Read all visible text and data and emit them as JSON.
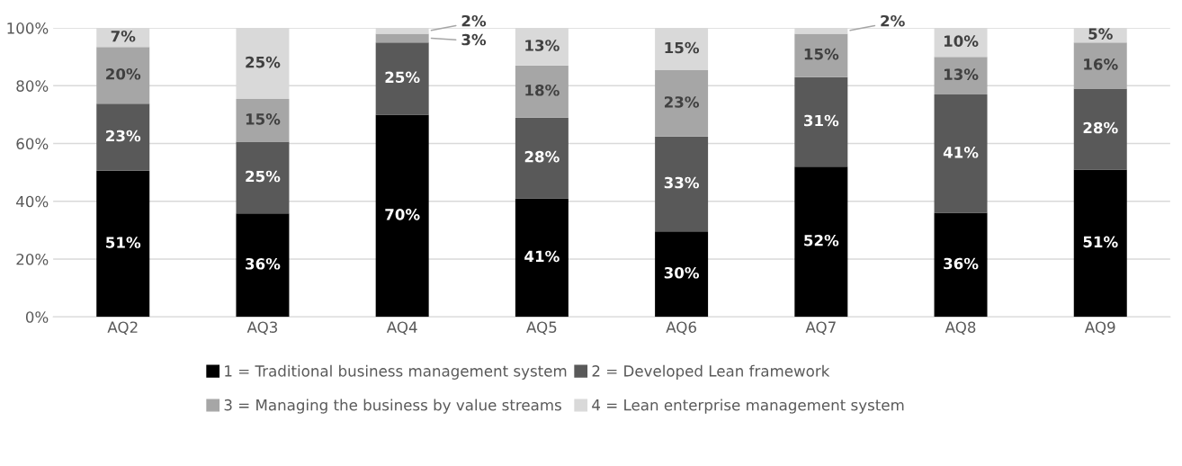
{
  "chart_data": {
    "type": "bar",
    "stacked": true,
    "categories": [
      "AQ2",
      "AQ3",
      "AQ4",
      "AQ5",
      "AQ6",
      "AQ7",
      "AQ8",
      "AQ9"
    ],
    "series": [
      {
        "name": "1 = Traditional business management system",
        "color": "#000000",
        "values": [
          50.6,
          35.8,
          70,
          41,
          29.6,
          52,
          36,
          51
        ],
        "value_labels": [
          "51%",
          "36%",
          "70%",
          "41%",
          "30%",
          "52%",
          "36%",
          "51%"
        ]
      },
      {
        "name": "2 = Developed Lean framework",
        "color": "#595959",
        "values": [
          23.2,
          24.8,
          25,
          28,
          32.8,
          31,
          41,
          28
        ],
        "value_labels": [
          "23%",
          "25%",
          "25%",
          "28%",
          "33%",
          "31%",
          "41%",
          "28%"
        ]
      },
      {
        "name": "3 = Managing the business by value streams",
        "color": "#a6a6a6",
        "values": [
          19.6,
          14.8,
          3,
          18,
          23.0,
          15,
          13,
          16
        ],
        "value_labels": [
          "20%",
          "15%",
          "3%",
          "18%",
          "23%",
          "15%",
          "13%",
          "16%"
        ]
      },
      {
        "name": "4 = Lean enterprise management system",
        "color": "#d9d9d9",
        "values": [
          6.6,
          24.6,
          2,
          13,
          14.6,
          2,
          10,
          5
        ],
        "value_labels": [
          "7%",
          "25%",
          "2%",
          "13%",
          "15%",
          "2%",
          "10%",
          "5%"
        ]
      }
    ],
    "ylim": [
      0,
      100
    ],
    "yticks": [
      {
        "value": 0,
        "label": "0%"
      },
      {
        "value": 20,
        "label": "20%"
      },
      {
        "value": 40,
        "label": "40%"
      },
      {
        "value": 60,
        "label": "60%"
      },
      {
        "value": 80,
        "label": "80%"
      },
      {
        "value": 100,
        "label": "100%"
      }
    ],
    "grid": "y",
    "legend": "bottom"
  }
}
